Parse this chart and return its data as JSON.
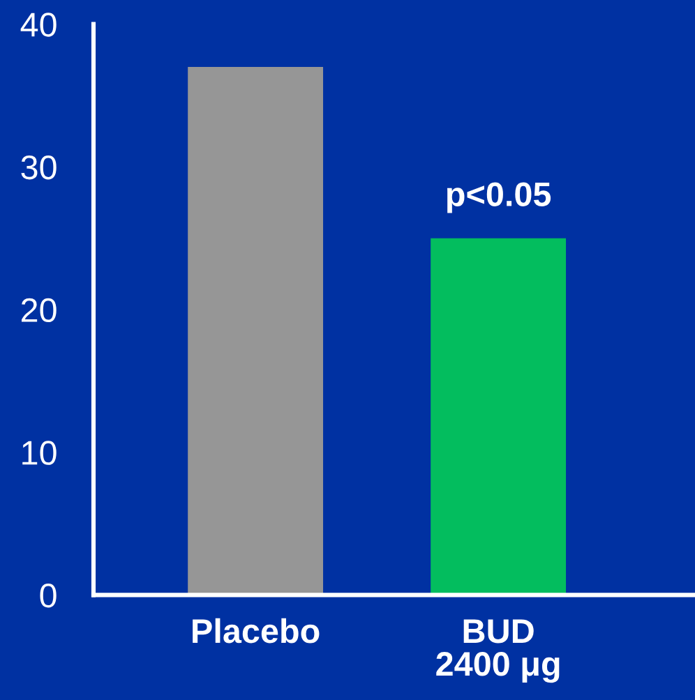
{
  "chart_data": {
    "type": "bar",
    "categories": [
      "Placebo",
      "BUD\n2400 μg"
    ],
    "values": [
      37,
      25
    ],
    "colors": [
      "#969696",
      "#03bd5e"
    ],
    "ylim": [
      0,
      40
    ],
    "yticks": [
      0,
      10,
      20,
      30,
      40
    ],
    "annotations": [
      {
        "text": "p<0.05",
        "x": "BUD\n2400 μg",
        "y": 25
      }
    ]
  }
}
